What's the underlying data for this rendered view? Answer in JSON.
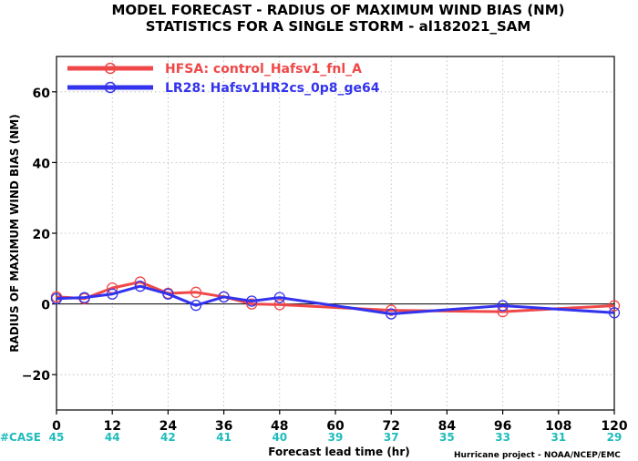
{
  "title_line1": "MODEL FORECAST - RADIUS OF MAXIMUM WIND BIAS (NM)",
  "title_line2": "STATISTICS FOR A SINGLE STORM - al182021_SAM",
  "case_label": "#CASE",
  "credit": "Hurricane project - NOAA/NCEP/EMC",
  "colors": {
    "hfsa": "#f04848",
    "lr28": "#3333ee",
    "zero_line": "#000000",
    "cases": "#1fbcbc",
    "grid": "#b4b4b4"
  },
  "chart_data": {
    "type": "line",
    "xlabel": "Forecast lead time (hr)",
    "ylabel": "RADIUS OF MAXIMUM WIND BIAS (NM)",
    "xlim": [
      0,
      120
    ],
    "ylim": [
      -30,
      70
    ],
    "x_ticks": [
      0,
      12,
      24,
      36,
      48,
      60,
      72,
      84,
      96,
      108,
      120
    ],
    "y_ticks": [
      -20,
      0,
      20,
      40,
      60
    ],
    "grid": true,
    "legend_position": "top-left",
    "case_counts": [
      45,
      44,
      42,
      41,
      40,
      39,
      37,
      35,
      33,
      31,
      29
    ],
    "series": [
      {
        "name": "HFSA: control_Hafsv1_fnl_A",
        "color": "#f04848",
        "x": [
          0,
          6,
          12,
          18,
          24,
          30,
          36,
          42,
          48,
          72,
          96,
          120
        ],
        "y": [
          2.0,
          1.5,
          4.5,
          6.2,
          3.0,
          3.3,
          2.0,
          0.0,
          -0.2,
          -1.8,
          -2.2,
          -0.5
        ]
      },
      {
        "name": "LR28: Hafsv1HR2cs_0p8_ge64",
        "color": "#3333ee",
        "x": [
          0,
          6,
          12,
          18,
          24,
          30,
          36,
          42,
          48,
          72,
          96,
          120
        ],
        "y": [
          1.5,
          1.8,
          2.8,
          5.0,
          2.8,
          -0.4,
          2.0,
          0.8,
          1.8,
          -2.8,
          -0.5,
          -2.5
        ]
      }
    ]
  }
}
